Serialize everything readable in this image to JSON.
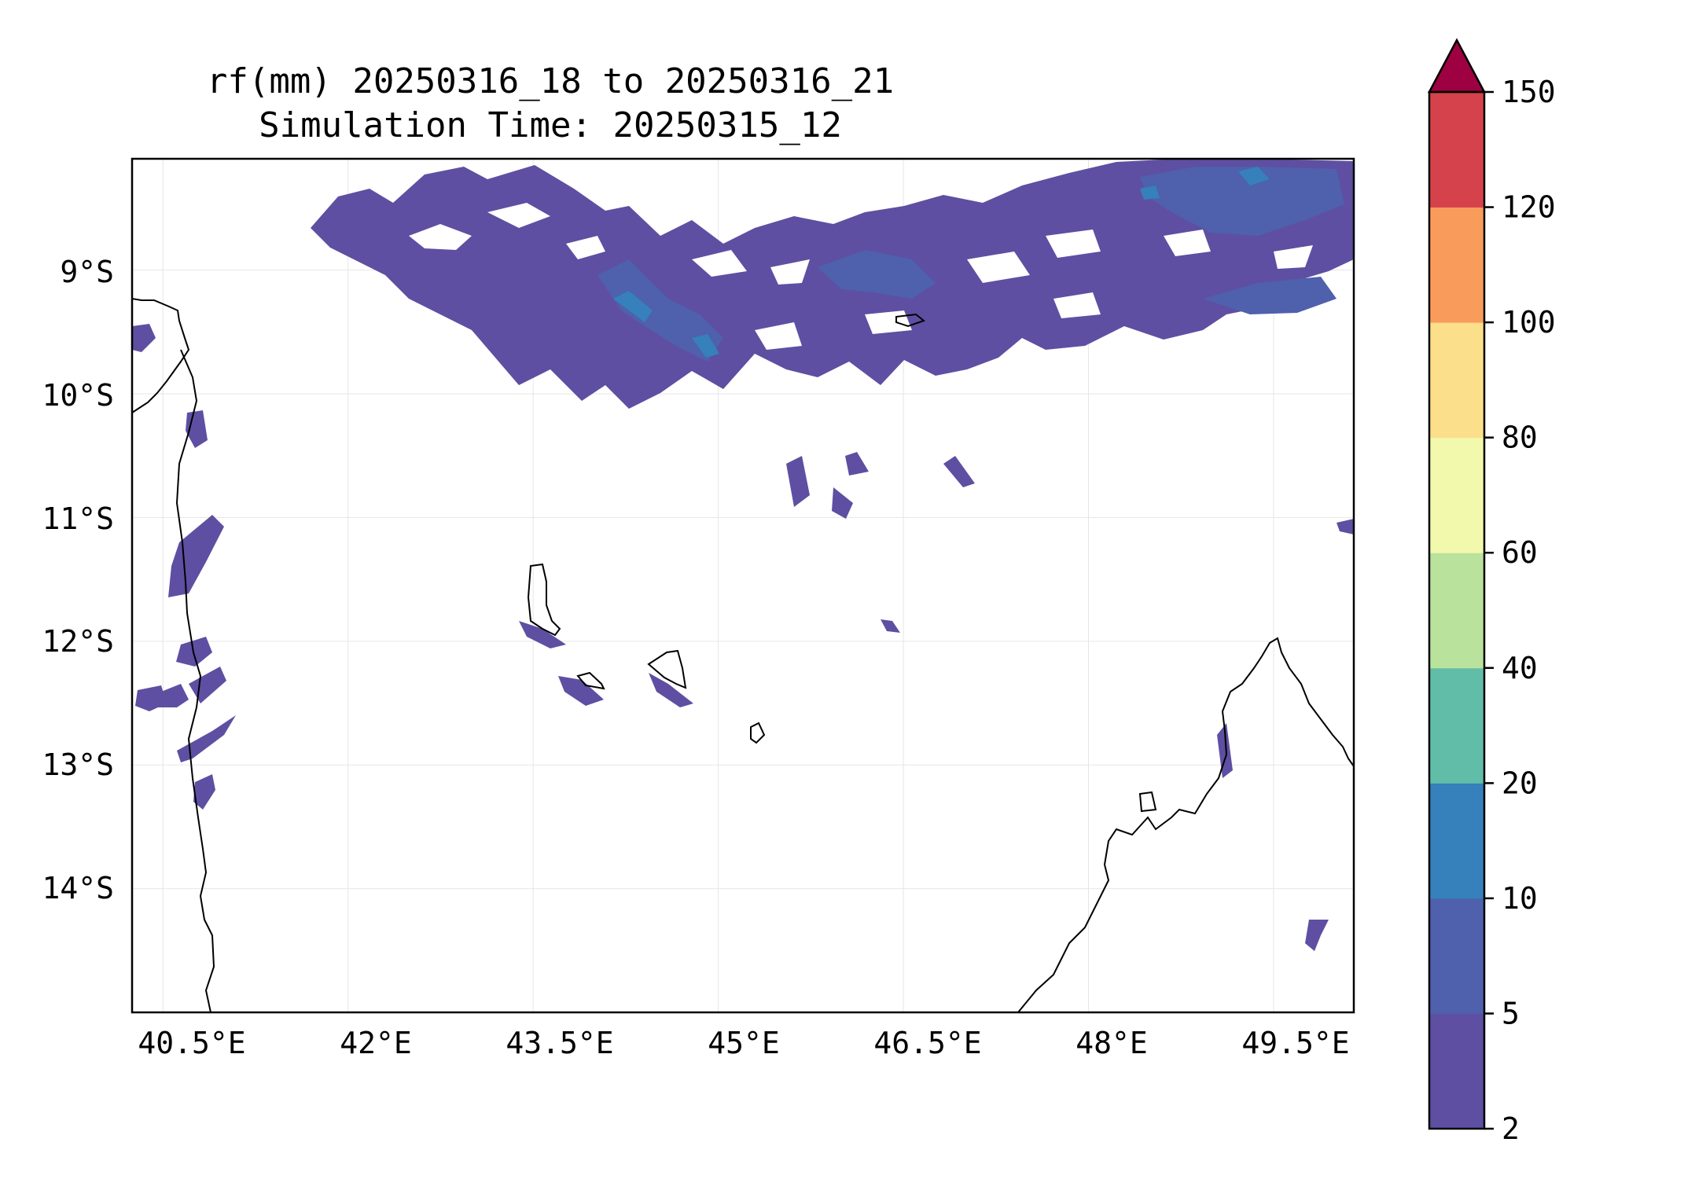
{
  "title": {
    "line1": "rf(mm) 20250316_18 to 20250316_21",
    "line2": "Simulation Time: 20250315_12"
  },
  "map": {
    "lon_ticks": [
      "40.5°E",
      "42°E",
      "43.5°E",
      "45°E",
      "46.5°E",
      "48°E",
      "49.5°E"
    ],
    "lat_ticks": [
      "9°S",
      "10°S",
      "11°S",
      "12°S",
      "13°S",
      "14°S"
    ],
    "lon_range": [
      40.25,
      50.15
    ],
    "lat_range": [
      -15.0,
      -8.1
    ],
    "gridlines": true
  },
  "colorbar": {
    "tick_labels": [
      "2",
      "5",
      "10",
      "20",
      "40",
      "60",
      "80",
      "100",
      "120",
      "150"
    ],
    "colors": [
      "#5e4fa2",
      "#4f60ad",
      "#3680bb",
      "#62bda8",
      "#b9e39d",
      "#f2f8ac",
      "#fcdf8b",
      "#f99c5b",
      "#d6424b",
      "#9e0142"
    ],
    "extend": "max"
  },
  "chart_data": {
    "type": "heatmap",
    "variable": "rf(mm)",
    "levels": [
      2,
      5,
      10,
      20,
      40,
      60,
      80,
      100,
      120,
      150
    ],
    "lon_range": [
      40.25,
      50.15
    ],
    "lat_range": [
      -15.0,
      -8.1
    ]
  }
}
